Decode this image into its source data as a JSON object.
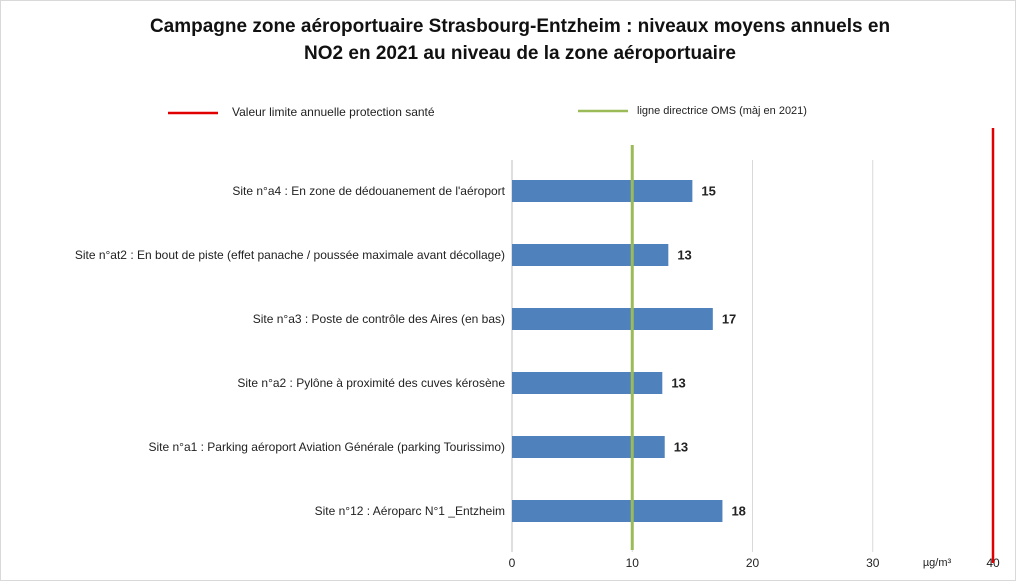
{
  "chart_data": {
    "type": "hbar",
    "title": "Campagne zone aéroportuaire Strasbourg-Entzheim : niveaux moyens annuels en NO2 en 2021 au niveau de la zone aéroportuaire",
    "categories": [
      "Site n°a4 : En zone de dédouanement de l'aéroport",
      "Site n°at2 : En bout de piste (effet panache / poussée maximale avant décollage)",
      "Site n°a3 : Poste de contrôle des Aires (en bas)",
      "Site n°a2 : Pylône à proximité des cuves kérosène",
      "Site n°a1 : Parking aéroport Aviation Générale (parking Tourissimo)",
      "Site n°12 : Aéroparc N°1 _Entzheim"
    ],
    "values": [
      15,
      13,
      16.7,
      12.5,
      12.7,
      17.5
    ],
    "value_labels": [
      "15",
      "13",
      "17",
      "13",
      "13",
      "18"
    ],
    "color": "#4f81bd",
    "x_label": "µg/m³",
    "xlim": [
      0,
      40
    ],
    "xticks": [
      0,
      10,
      20,
      30,
      40
    ],
    "grid": true,
    "reference_lines": [
      {
        "name": "Valeur limite annuelle protection santé",
        "value": 40,
        "color": "#e00000"
      },
      {
        "name": "ligne directrice OMS (màj en 2021)",
        "value": 10,
        "color": "#9bbb59"
      }
    ]
  }
}
